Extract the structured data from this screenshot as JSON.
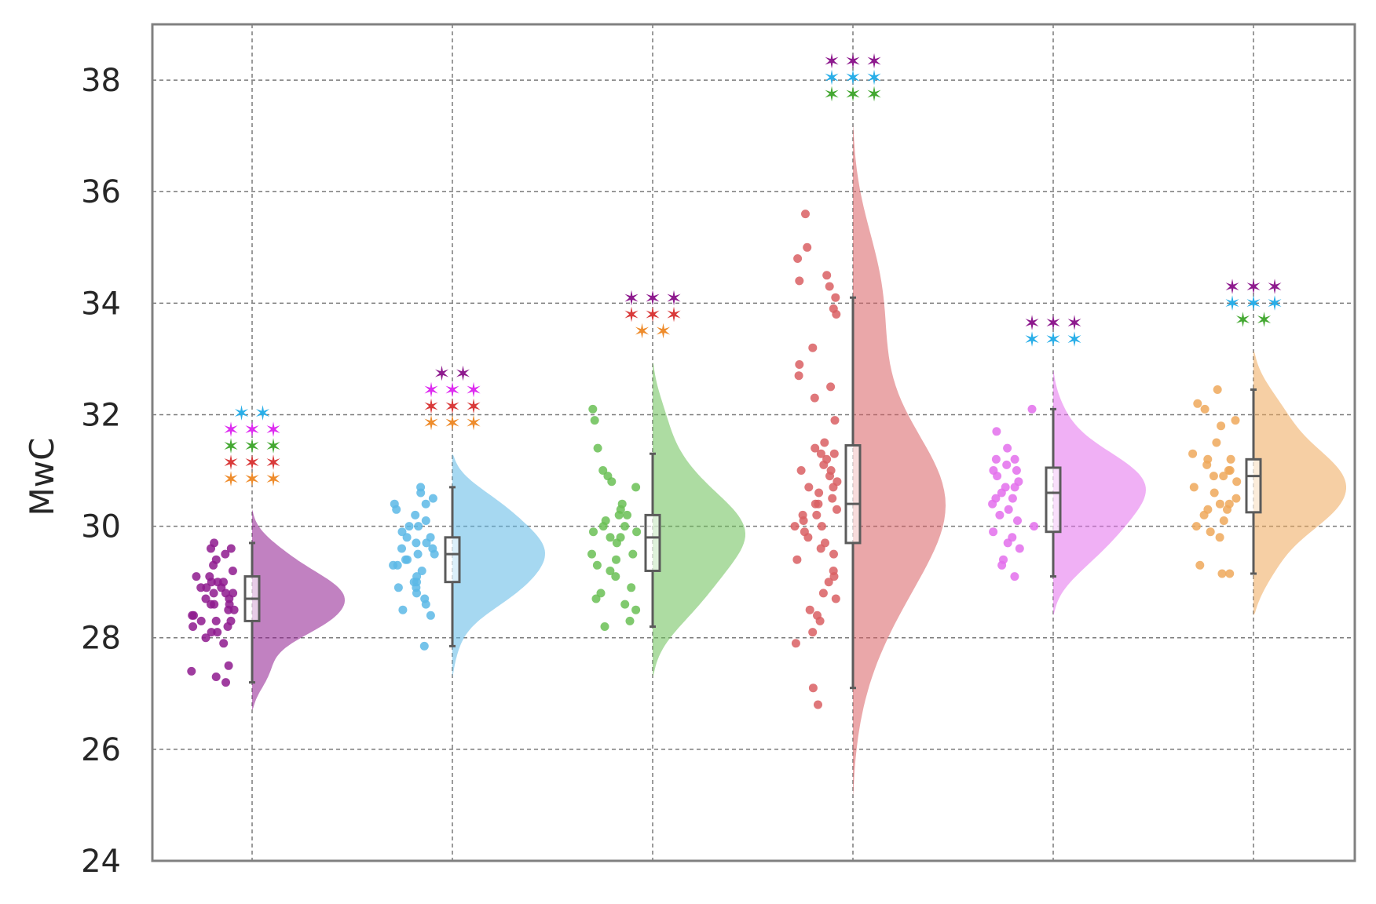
{
  "chart_data": {
    "type": "raincloud",
    "ylabel": "MwC",
    "ylim": [
      24,
      39
    ],
    "yticks": [
      24,
      26,
      28,
      30,
      32,
      34,
      36,
      38
    ],
    "grid": true,
    "legend": "none",
    "groups": [
      {
        "color": "#8e1a8e",
        "box": {
          "whisker_low": 27.2,
          "q1": 28.3,
          "median": 28.7,
          "q3": 29.1,
          "whisker_high": 29.7
        },
        "density_range": [
          26.7,
          30.3
        ],
        "density_mode": 28.7,
        "points": [
          29.7,
          29.6,
          29.6,
          29.5,
          29.4,
          29.3,
          29.2,
          29.1,
          29.1,
          29.0,
          29.0,
          28.9,
          28.9,
          28.8,
          28.8,
          28.8,
          28.7,
          28.7,
          28.6,
          28.6,
          28.5,
          28.5,
          28.4,
          28.4,
          28.3,
          28.3,
          28.2,
          28.2,
          28.1,
          28.1,
          28.0,
          27.9,
          27.5,
          27.4,
          27.3,
          27.2,
          29.0,
          28.9,
          28.6,
          28.3
        ],
        "significance": [
          {
            "color": "#29aee8",
            "count": 2
          },
          {
            "color": "#dd2bf0",
            "count": 3
          },
          {
            "color": "#44a832",
            "count": 3
          },
          {
            "color": "#d93a3a",
            "count": 3
          },
          {
            "color": "#ee8c2c",
            "count": 3
          }
        ]
      },
      {
        "color": "#5cb8e6",
        "box": {
          "whisker_low": 27.85,
          "q1": 29.0,
          "median": 29.5,
          "q3": 29.8,
          "whisker_high": 30.7
        },
        "density_range": [
          27.3,
          31.3
        ],
        "density_mode": 29.5,
        "points": [
          30.7,
          30.6,
          30.5,
          30.4,
          30.4,
          30.3,
          30.2,
          30.1,
          30.0,
          30.0,
          29.9,
          29.8,
          29.8,
          29.7,
          29.7,
          29.6,
          29.5,
          29.5,
          29.4,
          29.4,
          29.3,
          29.2,
          29.1,
          29.0,
          29.0,
          28.9,
          28.9,
          28.8,
          28.7,
          28.6,
          28.5,
          28.4,
          27.85,
          29.6,
          29.3
        ],
        "significance": [
          {
            "color": "#8e1a8e",
            "count": 2
          },
          {
            "color": "#dd2bf0",
            "count": 3
          },
          {
            "color": "#d93a3a",
            "count": 3
          },
          {
            "color": "#ee8c2c",
            "count": 3
          }
        ]
      },
      {
        "color": "#6abf55",
        "box": {
          "whisker_low": 28.2,
          "q1": 29.2,
          "median": 29.8,
          "q3": 30.2,
          "whisker_high": 31.3
        },
        "density_range": [
          27.3,
          32.95
        ],
        "density_mode": 29.9,
        "points": [
          32.1,
          31.9,
          31.4,
          31.0,
          30.9,
          30.8,
          30.7,
          30.4,
          30.3,
          30.2,
          30.2,
          30.1,
          30.0,
          30.0,
          29.9,
          29.9,
          29.8,
          29.8,
          29.7,
          29.5,
          29.5,
          29.4,
          29.3,
          29.2,
          29.1,
          28.9,
          28.8,
          28.7,
          28.6,
          28.5,
          28.3,
          28.2
        ],
        "significance": [
          {
            "color": "#8e1a8e",
            "count": 3
          },
          {
            "color": "#d93a3a",
            "count": 3
          },
          {
            "color": "#ee8c2c",
            "count": 2
          }
        ]
      },
      {
        "color": "#d95f63",
        "box": {
          "whisker_low": 27.1,
          "q1": 29.7,
          "median": 30.4,
          "q3": 31.45,
          "whisker_high": 34.1
        },
        "density_range": [
          25.15,
          37.2
        ],
        "density_mode": 30.3,
        "points": [
          35.6,
          35.0,
          34.8,
          34.5,
          34.4,
          34.3,
          34.1,
          33.9,
          33.8,
          33.2,
          32.9,
          32.7,
          32.5,
          32.3,
          31.9,
          31.5,
          31.4,
          31.3,
          31.3,
          31.2,
          31.1,
          31.0,
          31.0,
          30.9,
          30.8,
          30.7,
          30.7,
          30.6,
          30.5,
          30.4,
          30.4,
          30.3,
          30.2,
          30.2,
          30.1,
          30.0,
          30.0,
          29.9,
          29.8,
          29.7,
          29.6,
          29.5,
          29.4,
          29.2,
          29.1,
          29.0,
          28.8,
          28.7,
          28.5,
          28.4,
          28.3,
          28.1,
          27.9,
          27.1,
          26.8
        ],
        "significance": [
          {
            "color": "#8e1a8e",
            "count": 3
          },
          {
            "color": "#29aee8",
            "count": 3
          },
          {
            "color": "#44a832",
            "count": 3
          }
        ]
      },
      {
        "color": "#e36fec",
        "box": {
          "whisker_low": 29.1,
          "q1": 29.9,
          "median": 30.6,
          "q3": 31.05,
          "whisker_high": 32.1
        },
        "density_range": [
          28.4,
          32.8
        ],
        "density_mode": 30.9,
        "points": [
          32.1,
          31.7,
          31.4,
          31.2,
          31.2,
          31.1,
          31.0,
          31.0,
          30.9,
          30.8,
          30.7,
          30.7,
          30.6,
          30.5,
          30.5,
          30.4,
          30.3,
          30.2,
          30.1,
          30.0,
          29.9,
          29.8,
          29.7,
          29.6,
          29.4,
          29.3,
          29.1
        ],
        "significance": [
          {
            "color": "#8e1a8e",
            "count": 3
          },
          {
            "color": "#29aee8",
            "count": 3
          }
        ]
      },
      {
        "color": "#eea85a",
        "box": {
          "whisker_low": 29.15,
          "q1": 30.25,
          "median": 30.9,
          "q3": 31.2,
          "whisker_high": 32.45
        },
        "density_range": [
          28.4,
          33.15
        ],
        "density_mode": 31.0,
        "points": [
          32.45,
          32.2,
          32.1,
          31.9,
          31.8,
          31.5,
          31.3,
          31.2,
          31.2,
          31.1,
          31.0,
          31.0,
          30.9,
          30.9,
          30.8,
          30.7,
          30.6,
          30.5,
          30.4,
          30.4,
          30.3,
          30.3,
          30.2,
          30.1,
          30.0,
          29.9,
          29.8,
          29.3,
          29.15,
          29.15
        ],
        "significance": [
          {
            "color": "#8e1a8e",
            "count": 3
          },
          {
            "color": "#29aee8",
            "count": 3
          },
          {
            "color": "#44a832",
            "count": 2
          }
        ]
      }
    ]
  }
}
